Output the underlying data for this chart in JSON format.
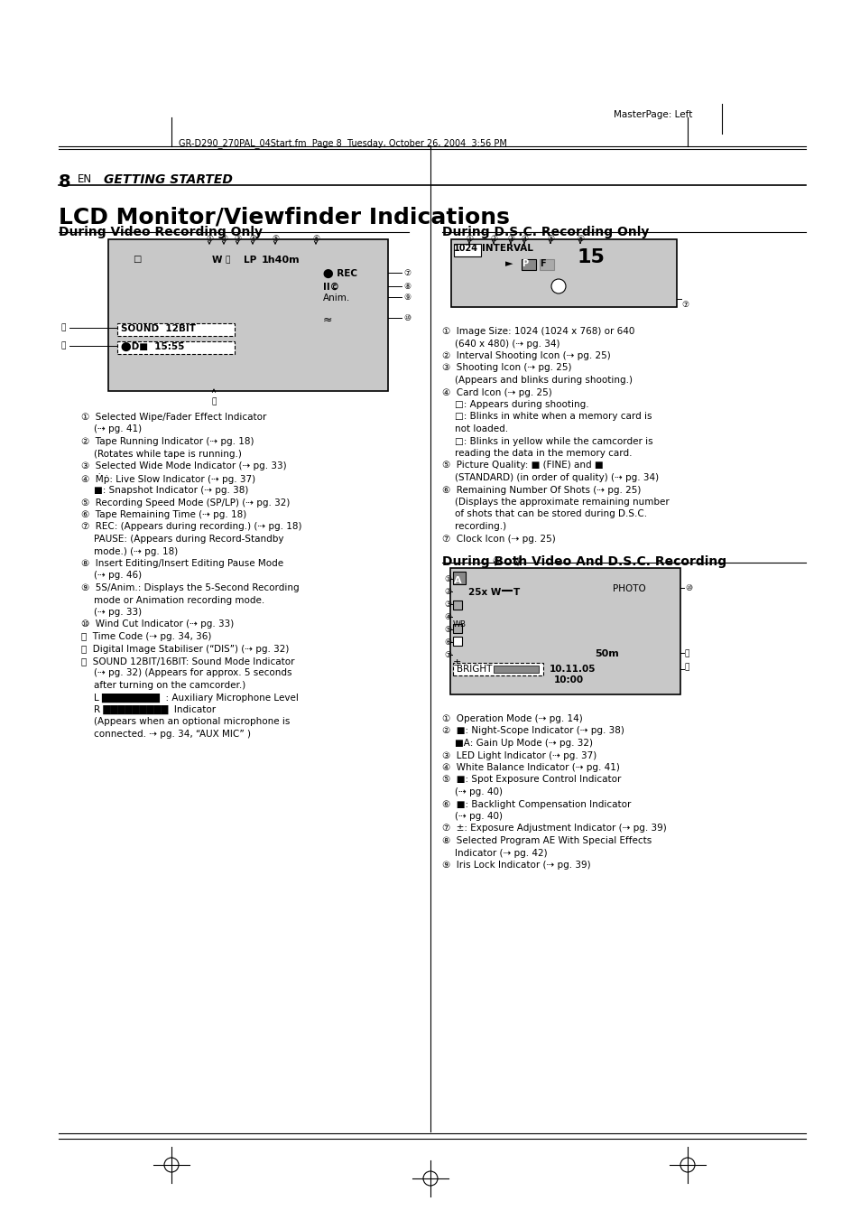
{
  "bg_color": "#ffffff",
  "page_header_text": "MasterPage: Left",
  "file_info": "GR-D290_270PAL_04Start.fm  Page 8  Tuesday, October 26, 2004  3:56 PM",
  "page_num": "8",
  "page_num_en": "EN",
  "section_title": "GETTING STARTED",
  "main_title": "LCD Monitor/Viewfinder Indications",
  "section1_title": "During Video Recording Only",
  "section2_title": "During D.S.C. Recording Only",
  "section3_title": "During Both Video And D.S.C. Recording",
  "video_items": [
    [
      "Selected Wipe/Fader Effect Indicator",
      "(⇢ pg. 41)"
    ],
    [
      "Tape Running Indicator (⇢ pg. 18)",
      "(Rotates while tape is running.)"
    ],
    [
      "Selected Wide Mode Indicator (⇢ pg. 33)"
    ],
    [
      "Ṁṗ: Live Slow Indicator (⇢ pg. 37)",
      "■: Snapshot Indicator (⇢ pg. 38)"
    ],
    [
      "Recording Speed Mode (SP/LP) (⇢ pg. 32)"
    ],
    [
      "Tape Remaining Time (⇢ pg. 18)"
    ],
    [
      "REC: (Appears during recording.) (⇢ pg. 18)",
      "PAUSE: (Appears during Record-Standby",
      "mode.) (⇢ pg. 18)"
    ],
    [
      "Insert Editing/Insert Editing Pause Mode",
      "(⇢ pg. 46)"
    ],
    [
      "5S/Anim.: Displays the 5-Second Recording",
      "mode or Animation recording mode.",
      "(⇢ pg. 33)"
    ],
    [
      "Wind Cut Indicator (⇢ pg. 33)"
    ],
    [
      "Time Code (⇢ pg. 34, 36)"
    ],
    [
      "Digital Image Stabiliser (“DIS”) (⇢ pg. 32)"
    ],
    [
      "SOUND 12BIT/16BIT: Sound Mode Indicator",
      "(⇢ pg. 32) (Appears for approx. 5 seconds",
      "after turning on the camcorder.)",
      "L ████████  : Auxiliary Microphone Level",
      "R █████████  Indicator",
      "(Appears when an optional microphone is",
      "connected. ⇢ pg. 34, “AUX MIC” )"
    ]
  ],
  "dsc_items": [
    [
      "Image Size: 1024 (1024 x 768) or 640",
      "(640 x 480) (⇢ pg. 34)"
    ],
    [
      "Interval Shooting Icon (⇢ pg. 25)"
    ],
    [
      "Shooting Icon (⇢ pg. 25)",
      "(Appears and blinks during shooting.)"
    ],
    [
      "Card Icon (⇢ pg. 25)",
      "□: Appears during shooting.",
      "□: Blinks in white when a memory card is",
      "not loaded.",
      "□: Blinks in yellow while the camcorder is",
      "reading the data in the memory card."
    ],
    [
      "Picture Quality: ■ (FINE) and ■",
      "(STANDARD) (in order of quality) (⇢ pg. 34)"
    ],
    [
      "Remaining Number Of Shots (⇢ pg. 25)",
      "(Displays the approximate remaining number",
      "of shots that can be stored during D.S.C.",
      "recording.)"
    ],
    [
      "Clock Icon (⇢ pg. 25)"
    ]
  ],
  "both_items": [
    [
      "Operation Mode (⇢ pg. 14)"
    ],
    [
      "■: Night-Scope Indicator (⇢ pg. 38)",
      "■A: Gain Up Mode (⇢ pg. 32)"
    ],
    [
      "LED Light Indicator (⇢ pg. 37)"
    ],
    [
      "White Balance Indicator (⇢ pg. 41)"
    ],
    [
      "■: Spot Exposure Control Indicator",
      "(⇢ pg. 40)"
    ],
    [
      "■: Backlight Compensation Indicator",
      "(⇢ pg. 40)"
    ],
    [
      "±: Exposure Adjustment Indicator (⇢ pg. 39)"
    ],
    [
      "Selected Program AE With Special Effects",
      "Indicator (⇢ pg. 42)"
    ],
    [
      "Iris Lock Indicator (⇢ pg. 39)"
    ]
  ]
}
